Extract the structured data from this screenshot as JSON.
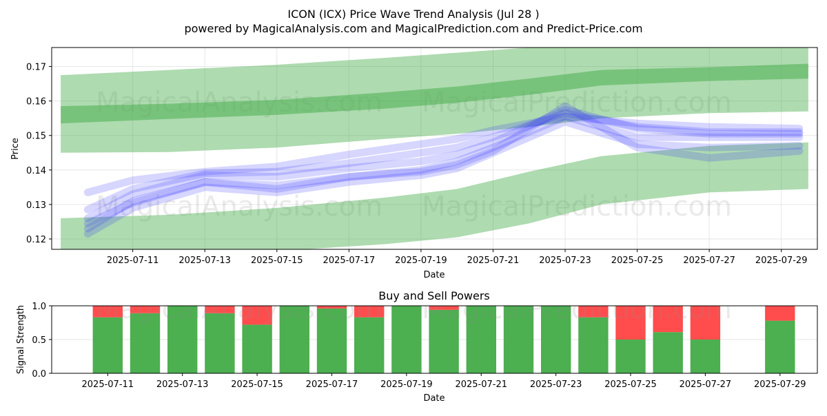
{
  "title": "ICON (ICX) Price Wave Trend Analysis (Jul 28 )",
  "subtitle": "powered by MagicalAnalysis.com and MagicalPrediction.com and Predict-Price.com",
  "watermarks": [
    "MagicalAnalysis.com",
    "MagicalPrediction.com"
  ],
  "colors": {
    "band": "#4caf50",
    "wave": "#3333ff",
    "buy": "#4caf50",
    "sell": "#ff4d4d"
  },
  "chart_data": [
    {
      "type": "area",
      "title": "",
      "xlabel": "Date",
      "ylabel": "Price",
      "x_ticks": [
        "2025-07-11",
        "2025-07-13",
        "2025-07-15",
        "2025-07-17",
        "2025-07-19",
        "2025-07-21",
        "2025-07-23",
        "2025-07-25",
        "2025-07-27",
        "2025-07-29"
      ],
      "y_ticks": [
        "0.12",
        "0.13",
        "0.14",
        "0.15",
        "0.16",
        "0.17"
      ],
      "xlim": [
        "2025-07-08T18:00",
        "2025-07-30T00:00"
      ],
      "ylim": [
        0.117,
        0.1755
      ],
      "grid": true,
      "bands": [
        {
          "x": [
            "2025-07-09",
            "2025-07-12",
            "2025-07-15",
            "2025-07-18",
            "2025-07-20",
            "2025-07-22",
            "2025-07-24",
            "2025-07-27",
            "2025-07-29T18:00"
          ],
          "upper": [
            0.1675,
            0.169,
            0.1705,
            0.1725,
            0.174,
            0.1755,
            0.177,
            0.178,
            0.1755
          ],
          "lower": [
            0.145,
            0.1452,
            0.1465,
            0.149,
            0.1505,
            0.1525,
            0.155,
            0.1565,
            0.157
          ]
        },
        {
          "x": [
            "2025-07-09",
            "2025-07-12",
            "2025-07-15",
            "2025-07-18",
            "2025-07-20",
            "2025-07-22",
            "2025-07-24",
            "2025-07-27",
            "2025-07-29T18:00"
          ],
          "upper": [
            0.126,
            0.127,
            0.129,
            0.132,
            0.1345,
            0.1395,
            0.144,
            0.147,
            0.148
          ],
          "lower": [
            0.1145,
            0.114,
            0.1165,
            0.1185,
            0.1205,
            0.1245,
            0.13,
            0.1335,
            0.1345
          ]
        },
        {
          "x": [
            "2025-07-09",
            "2025-07-12",
            "2025-07-15",
            "2025-07-18",
            "2025-07-20",
            "2025-07-22",
            "2025-07-24",
            "2025-07-27",
            "2025-07-29T18:00"
          ],
          "upper": [
            0.1585,
            0.1592,
            0.1603,
            0.1625,
            0.1642,
            0.1665,
            0.169,
            0.1698,
            0.1708
          ],
          "lower": [
            0.1535,
            0.1548,
            0.156,
            0.1578,
            0.1595,
            0.1618,
            0.1645,
            0.1658,
            0.1665
          ]
        }
      ],
      "wave_lines": [
        {
          "x": [
            "2025-07-09T18:00",
            "2025-07-11",
            "2025-07-13",
            "2025-07-15",
            "2025-07-17",
            "2025-07-19",
            "2025-07-20",
            "2025-07-21",
            "2025-07-23",
            "2025-07-25",
            "2025-07-27",
            "2025-07-29T12:00"
          ],
          "y": [
            0.123,
            0.131,
            0.1365,
            0.1355,
            0.138,
            0.14,
            0.1425,
            0.1465,
            0.1555,
            0.1495,
            0.1495,
            0.1495
          ]
        },
        {
          "x": [
            "2025-07-09T18:00",
            "2025-07-11",
            "2025-07-13",
            "2025-07-15",
            "2025-07-17",
            "2025-07-19",
            "2025-07-20",
            "2025-07-21",
            "2025-07-23",
            "2025-07-25",
            "2025-07-27",
            "2025-07-29T12:00"
          ],
          "y": [
            0.126,
            0.133,
            0.1385,
            0.138,
            0.1405,
            0.1425,
            0.1445,
            0.148,
            0.1575,
            0.152,
            0.1505,
            0.1505
          ]
        },
        {
          "x": [
            "2025-07-09T18:00",
            "2025-07-11",
            "2025-07-13",
            "2025-07-15",
            "2025-07-17",
            "2025-07-19",
            "2025-07-20",
            "2025-07-21",
            "2025-07-23",
            "2025-07-25",
            "2025-07-27",
            "2025-07-29T12:00"
          ],
          "y": [
            0.1215,
            0.129,
            0.135,
            0.1335,
            0.1365,
            0.1385,
            0.1405,
            0.145,
            0.154,
            0.1475,
            0.1465,
            0.147
          ]
        },
        {
          "x": [
            "2025-07-09T18:00",
            "2025-07-11",
            "2025-07-13",
            "2025-07-15",
            "2025-07-17",
            "2025-07-19",
            "2025-07-20",
            "2025-07-21",
            "2025-07-23",
            "2025-07-25",
            "2025-07-27",
            "2025-07-29T12:00"
          ],
          "y": [
            0.1285,
            0.1345,
            0.139,
            0.1395,
            0.142,
            0.145,
            0.1465,
            0.1495,
            0.1565,
            0.1525,
            0.151,
            0.151
          ]
        },
        {
          "x": [
            "2025-07-09T18:00",
            "2025-07-11",
            "2025-07-13",
            "2025-07-15",
            "2025-07-17",
            "2025-07-19",
            "2025-07-20",
            "2025-07-21",
            "2025-07-23",
            "2025-07-25",
            "2025-07-27",
            "2025-07-29T12:00"
          ],
          "y": [
            0.1245,
            0.1305,
            0.1365,
            0.1345,
            0.138,
            0.1395,
            0.1415,
            0.1455,
            0.1585,
            0.1465,
            0.1435,
            0.1455
          ]
        },
        {
          "x": [
            "2025-07-09T18:00",
            "2025-07-11",
            "2025-07-13",
            "2025-07-15",
            "2025-07-17",
            "2025-07-19",
            "2025-07-20",
            "2025-07-21",
            "2025-07-23",
            "2025-07-25",
            "2025-07-27",
            "2025-07-29T12:00"
          ],
          "y": [
            0.1335,
            0.137,
            0.1395,
            0.141,
            0.1445,
            0.1475,
            0.149,
            0.1515,
            0.1555,
            0.1535,
            0.1525,
            0.152
          ]
        }
      ]
    },
    {
      "type": "bar",
      "title": "Buy and Sell Powers",
      "xlabel": "Date",
      "ylabel": "Signal Strength",
      "x_ticks": [
        "2025-07-11",
        "2025-07-13",
        "2025-07-15",
        "2025-07-17",
        "2025-07-19",
        "2025-07-21",
        "2025-07-23",
        "2025-07-25",
        "2025-07-27",
        "2025-07-29"
      ],
      "y_ticks": [
        "0.0",
        "0.5",
        "1.0"
      ],
      "xlim": [
        "2025-07-09T12:00",
        "2025-07-30T00:00"
      ],
      "ylim": [
        0,
        1
      ],
      "grid": true,
      "categories": [
        "2025-07-11",
        "2025-07-12",
        "2025-07-13",
        "2025-07-14",
        "2025-07-15",
        "2025-07-16",
        "2025-07-17",
        "2025-07-18",
        "2025-07-19",
        "2025-07-20",
        "2025-07-21",
        "2025-07-22",
        "2025-07-23",
        "2025-07-24",
        "2025-07-25",
        "2025-07-26",
        "2025-07-27",
        "2025-07-29"
      ],
      "series": [
        {
          "name": "Buy",
          "values": [
            0.83,
            0.89,
            1.0,
            0.89,
            0.72,
            1.0,
            0.96,
            0.83,
            1.0,
            0.94,
            1.0,
            1.0,
            1.0,
            0.83,
            0.5,
            0.61,
            0.5,
            0.78
          ]
        },
        {
          "name": "Sell",
          "values": [
            0.17,
            0.11,
            0.0,
            0.11,
            0.28,
            0.0,
            0.04,
            0.17,
            0.0,
            0.06,
            0.0,
            0.0,
            0.0,
            0.17,
            0.5,
            0.39,
            0.5,
            0.22
          ]
        }
      ]
    }
  ]
}
